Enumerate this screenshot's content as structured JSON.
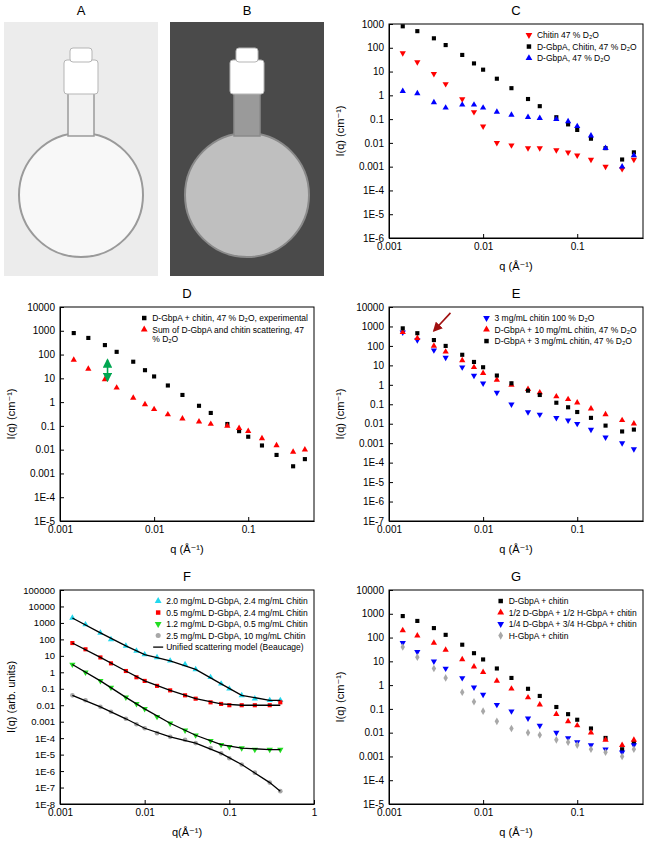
{
  "chart_data": [
    {
      "type": "image",
      "title": "A"
    },
    {
      "type": "image",
      "title": "B"
    },
    {
      "type": "scatter",
      "title": "C",
      "x_label": "q (Å⁻¹)",
      "y_label": "I(q) (cm⁻¹)",
      "log": true,
      "legend": "top-right",
      "xlim": [
        0.001,
        0.5
      ],
      "ylim": [
        1e-06,
        1000
      ],
      "xticks": [
        0.001,
        0.01,
        0.1
      ],
      "yticks": [
        {
          "value": 1e-06,
          "label": "1E-6"
        },
        {
          "value": 1e-05,
          "label": "1E-5"
        },
        {
          "value": 0.0001,
          "label": "1E-4"
        },
        0.001,
        0.01,
        0.1,
        1,
        10,
        100,
        1000
      ],
      "x": [
        0.0014,
        0.002,
        0.003,
        0.004,
        0.006,
        0.008,
        0.01,
        0.014,
        0.02,
        0.03,
        0.04,
        0.06,
        0.08,
        0.1,
        0.14,
        0.2,
        0.3,
        0.4
      ],
      "series": [
        {
          "name": "Chitin 47 % D₂O",
          "color": "#ff0000",
          "marker": "triangle-down",
          "values": [
            60,
            25,
            8,
            3,
            0.7,
            0.2,
            0.05,
            0.01,
            0.008,
            0.006,
            0.006,
            0.005,
            0.004,
            0.003,
            0.002,
            0.001,
            0.0008,
            0.002
          ]
        },
        {
          "name": "D-GbpA, Chitin, 47 % D₂O",
          "color": "#000000",
          "marker": "square",
          "values": [
            800,
            500,
            250,
            130,
            50,
            22,
            12,
            5,
            2,
            0.7,
            0.35,
            0.12,
            0.06,
            0.035,
            0.015,
            0.006,
            0.002,
            0.004
          ]
        },
        {
          "name": "D-GbpA, 47 % D₂O",
          "color": "#0000ff",
          "marker": "triangle",
          "values": [
            1.5,
            1.2,
            0.5,
            0.3,
            0.4,
            0.4,
            0.3,
            0.2,
            0.15,
            0.12,
            0.11,
            0.1,
            0.08,
            0.05,
            0.02,
            0.006,
            0.001,
            0.003
          ]
        }
      ]
    },
    {
      "type": "scatter",
      "title": "D",
      "x_label": "q (Å⁻¹)",
      "y_label": "I(q) (cm⁻¹)",
      "log": true,
      "legend": "top-right",
      "xlim": [
        0.001,
        0.5
      ],
      "ylim": [
        1e-05,
        10000
      ],
      "xticks": [
        0.001,
        0.01,
        0.1
      ],
      "yticks": [
        {
          "value": 1e-05,
          "label": "1E-5"
        },
        {
          "value": 0.0001,
          "label": "1E-4"
        },
        0.001,
        0.01,
        0.1,
        1,
        10,
        100,
        1000,
        10000
      ],
      "x": [
        0.0014,
        0.002,
        0.003,
        0.004,
        0.006,
        0.008,
        0.01,
        0.014,
        0.02,
        0.03,
        0.04,
        0.06,
        0.08,
        0.1,
        0.14,
        0.2,
        0.3,
        0.4
      ],
      "series": [
        {
          "name": "D-GbpA + chitin, 47 % D₂O, experimental",
          "color": "#000000",
          "marker": "square",
          "values": [
            800,
            500,
            250,
            130,
            50,
            22,
            12,
            5,
            2,
            0.7,
            0.35,
            0.12,
            0.06,
            0.035,
            0.015,
            0.006,
            0.002,
            0.004
          ]
        },
        {
          "name": "Sum of D-GbpA and chitin scattering, 47 % D₂O",
          "color": "#ff0000",
          "marker": "triangle",
          "values": [
            60,
            25,
            9,
            4,
            1.5,
            0.8,
            0.5,
            0.3,
            0.2,
            0.15,
            0.12,
            0.1,
            0.08,
            0.06,
            0.03,
            0.015,
            0.008,
            0.01
          ]
        }
      ],
      "arrows": [
        {
          "x": [
            0.0032,
            0.0032
          ],
          "y": [
            8,
            60
          ],
          "color": "#00a651",
          "marker": "both"
        }
      ]
    },
    {
      "type": "scatter",
      "title": "E",
      "x_label": "q (Å⁻¹)",
      "y_label": "I(q) (cm⁻¹)",
      "log": true,
      "legend": "top-right",
      "xlim": [
        0.001,
        0.5
      ],
      "ylim": [
        1e-07,
        10000
      ],
      "xticks": [
        0.001,
        0.01,
        0.1
      ],
      "yticks": [
        {
          "value": 1e-07,
          "label": "1E-7"
        },
        {
          "value": 1e-06,
          "label": "1E-6"
        },
        {
          "value": 1e-05,
          "label": "1E-5"
        },
        {
          "value": 0.0001,
          "label": "1E-4"
        },
        0.001,
        0.01,
        0.1,
        1,
        10,
        100,
        1000,
        10000
      ],
      "x": [
        0.0014,
        0.002,
        0.003,
        0.004,
        0.006,
        0.008,
        0.01,
        0.014,
        0.02,
        0.03,
        0.04,
        0.06,
        0.08,
        0.1,
        0.14,
        0.2,
        0.3,
        0.4
      ],
      "series": [
        {
          "name": "3 mg/mL chitin 100 % D₂O",
          "color": "#0000ff",
          "marker": "triangle-down",
          "values": [
            500,
            200,
            60,
            25,
            8,
            3,
            1.2,
            0.4,
            0.1,
            0.04,
            0.03,
            0.02,
            0.015,
            0.01,
            0.005,
            0.002,
            0.001,
            0.0005
          ]
        },
        {
          "name": "D-GbpA + 10 mg/mL chitin, 47 % D₂O",
          "color": "#ff0000",
          "marker": "triangle",
          "values": [
            500,
            250,
            100,
            50,
            18,
            8,
            4,
            1.8,
            1,
            0.6,
            0.4,
            0.25,
            0.18,
            0.12,
            0.06,
            0.03,
            0.015,
            0.01
          ]
        },
        {
          "name": "D-GbpA + 3 mg/mL chitin, 47 % D₂O",
          "color": "#000000",
          "marker": "square",
          "values": [
            800,
            450,
            200,
            100,
            35,
            15,
            8,
            3,
            1.2,
            0.5,
            0.3,
            0.12,
            0.07,
            0.04,
            0.02,
            0.008,
            0.004,
            0.005
          ]
        }
      ],
      "arrows": [
        {
          "x": [
            0.0045,
            0.003
          ],
          "y": [
            5000,
            600
          ],
          "color": "#a01010",
          "marker": "end"
        }
      ]
    },
    {
      "type": "scatter",
      "title": "F",
      "x_label": "q(Å⁻¹)",
      "y_label": "I(q) (arb. units)",
      "log": true,
      "legend": "top-right",
      "xlim": [
        0.001,
        1
      ],
      "ylim": [
        1e-08,
        100000
      ],
      "xticks": [
        0.001,
        0.01,
        0.1,
        1
      ],
      "yticks": [
        {
          "value": 1e-08,
          "label": "1E-8"
        },
        {
          "value": 1e-07,
          "label": "1E-7"
        },
        {
          "value": 1e-06,
          "label": "1E-6"
        },
        {
          "value": 1e-05,
          "label": "1E-5"
        },
        {
          "value": 0.0001,
          "label": "1E-4"
        },
        0.001,
        0.01,
        0.1,
        1,
        10,
        100,
        1000,
        10000,
        100000
      ],
      "x": [
        0.0014,
        0.002,
        0.003,
        0.004,
        0.006,
        0.008,
        0.01,
        0.014,
        0.02,
        0.03,
        0.04,
        0.06,
        0.08,
        0.1,
        0.14,
        0.2,
        0.3,
        0.4
      ],
      "series": [
        {
          "name": "2.0 mg/mL D-GbpA, 2.4 mg/mL Chitin",
          "color": "#22d8ee",
          "marker": "triangle",
          "values": [
            2000,
            800,
            250,
            100,
            40,
            20,
            12,
            8,
            5,
            3,
            1.5,
            0.5,
            0.2,
            0.1,
            0.04,
            0.025,
            0.02,
            0.02
          ]
        },
        {
          "name": "0.5 mg/mL D-GbpA, 2.4 mg/mL Chitin",
          "color": "#ff0000",
          "marker": "square",
          "values": [
            60,
            25,
            8,
            3.5,
            1.2,
            0.5,
            0.3,
            0.15,
            0.08,
            0.04,
            0.025,
            0.015,
            0.012,
            0.01,
            0.01,
            0.01,
            0.01,
            0.015
          ]
        },
        {
          "name": "1.2 mg/mL D-GbpA, 0.5 mg/mL Chitin",
          "color": "#22dd22",
          "marker": "triangle-down",
          "values": [
            3,
            1,
            0.3,
            0.12,
            0.03,
            0.012,
            0.006,
            0.002,
            0.0008,
            0.0003,
            0.00015,
            7e-05,
            4e-05,
            3e-05,
            2.5e-05,
            2e-05,
            2e-05,
            2e-05
          ]
        },
        {
          "name": "2.5 mg/mL D-GbpA, 10 mg/mL Chitin",
          "color": "#a8a8a8",
          "marker": "circle",
          "values": [
            0.04,
            0.02,
            0.008,
            0.004,
            0.0015,
            0.0007,
            0.0004,
            0.0002,
            0.00012,
            8e-05,
            5e-05,
            2.5e-05,
            1.2e-05,
            6e-06,
            2.5e-06,
            8e-07,
            2e-07,
            6e-08
          ]
        },
        {
          "name": "Unified scattering model (Beaucage)",
          "color": "#000000",
          "type": "line",
          "line_style": "solid",
          "x": [
            0.0014,
            0.003,
            0.006,
            0.01,
            0.02,
            0.04,
            0.08,
            0.14,
            0.3,
            0.4,
            null,
            0.0014,
            0.003,
            0.006,
            0.01,
            0.02,
            0.04,
            0.08,
            0.14,
            0.3,
            0.4,
            null,
            0.0014,
            0.003,
            0.006,
            0.01,
            0.02,
            0.04,
            0.08,
            0.14,
            0.3,
            0.4,
            null,
            0.0014,
            0.003,
            0.006,
            0.01,
            0.02,
            0.04,
            0.08,
            0.14,
            0.3,
            0.4
          ],
          "values": [
            2000,
            250,
            40,
            12,
            5,
            1.5,
            0.2,
            0.04,
            0.02,
            0.02,
            null,
            60,
            8,
            1.2,
            0.3,
            0.08,
            0.025,
            0.012,
            0.01,
            0.01,
            0.01,
            null,
            3,
            0.3,
            0.03,
            0.006,
            0.0008,
            0.00015,
            4e-05,
            2.5e-05,
            2e-05,
            2e-05,
            null,
            0.04,
            0.008,
            0.0015,
            0.0004,
            0.00012,
            5e-05,
            1.2e-05,
            2.5e-06,
            2e-07,
            6e-08
          ]
        }
      ]
    },
    {
      "type": "scatter",
      "title": "G",
      "x_label": "q (Å⁻¹)",
      "y_label": "I(q) (cm⁻¹)",
      "log": true,
      "legend": "top-right",
      "xlim": [
        0.001,
        0.5
      ],
      "ylim": [
        1e-05,
        10000
      ],
      "xticks": [
        0.001,
        0.01,
        0.1
      ],
      "yticks": [
        {
          "value": 1e-05,
          "label": "1E-5"
        },
        {
          "value": 0.0001,
          "label": "1E-4"
        },
        0.001,
        0.01,
        0.1,
        1,
        10,
        100,
        1000,
        10000
      ],
      "x": [
        0.0014,
        0.002,
        0.003,
        0.004,
        0.006,
        0.008,
        0.01,
        0.014,
        0.02,
        0.03,
        0.04,
        0.06,
        0.08,
        0.1,
        0.14,
        0.2,
        0.3,
        0.4
      ],
      "series": [
        {
          "name": "D-GbpA + chitin",
          "color": "#000000",
          "marker": "square",
          "values": [
            800,
            500,
            250,
            130,
            50,
            22,
            12,
            5,
            2,
            0.7,
            0.35,
            0.12,
            0.06,
            0.035,
            0.015,
            0.006,
            0.002,
            0.004
          ]
        },
        {
          "name": "1/2 D-GbpA + 1/2 H-GbpA + chitin",
          "color": "#ff0000",
          "marker": "triangle",
          "values": [
            200,
            120,
            60,
            30,
            12,
            6,
            3.5,
            1.5,
            0.7,
            0.3,
            0.15,
            0.06,
            0.03,
            0.02,
            0.01,
            0.005,
            0.003,
            0.005
          ]
        },
        {
          "name": "1/4 D-GbpA + 3/4 H-GbpA + chitin",
          "color": "#0000ff",
          "marker": "triangle-down",
          "values": [
            60,
            25,
            10,
            5,
            2,
            0.8,
            0.4,
            0.15,
            0.08,
            0.04,
            0.02,
            0.01,
            0.006,
            0.004,
            0.003,
            0.002,
            0.0015,
            0.003
          ]
        },
        {
          "name": "H-GbpA + chitin",
          "color": "#a8a8a8",
          "marker": "diamond",
          "values": [
            40,
            15,
            5,
            2,
            0.5,
            0.2,
            0.08,
            0.03,
            0.015,
            0.01,
            0.008,
            0.005,
            0.004,
            0.003,
            0.002,
            0.0015,
            0.001,
            0.002
          ]
        }
      ]
    }
  ]
}
